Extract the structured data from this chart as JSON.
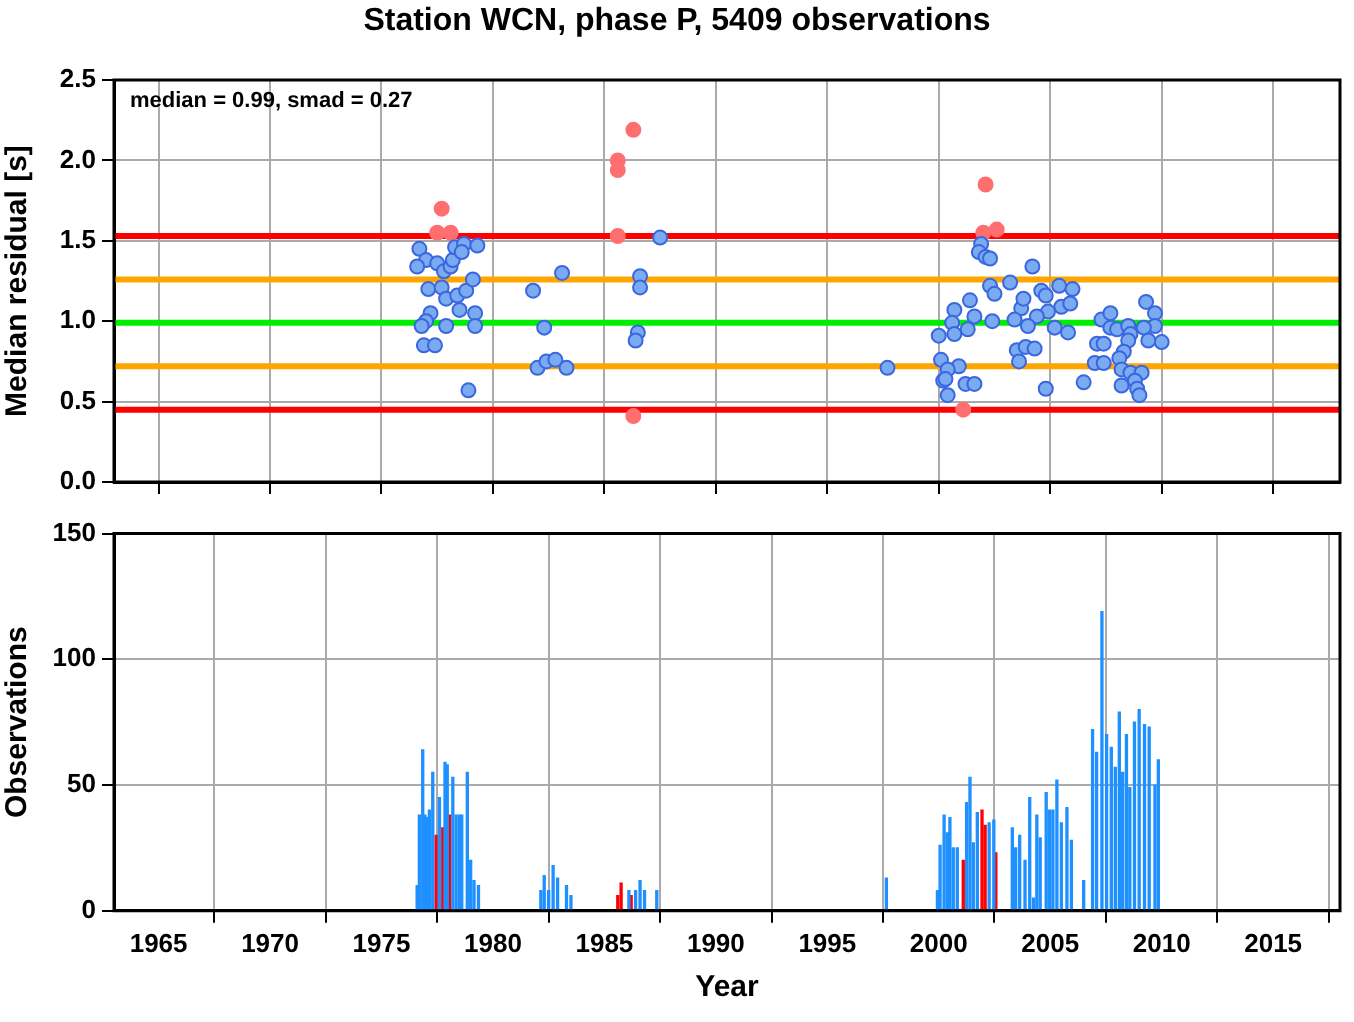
{
  "chart_data": [
    {
      "type": "scatter",
      "title": "Station WCN, phase P, 5409 observations",
      "ylabel": "Median residual [s]",
      "annotations": [
        "median = 0.99, smad = 0.27"
      ],
      "xlim": [
        1963,
        2018
      ],
      "xticks": [
        1965,
        1970,
        1975,
        1980,
        1985,
        1990,
        1995,
        2000,
        2005,
        2010,
        2015
      ],
      "ylim": [
        0,
        2.5
      ],
      "yticks": [
        {
          "value": 0,
          "label": "0.0"
        },
        {
          "value": 0.5,
          "label": "0.5"
        },
        {
          "value": 1,
          "label": "1.0"
        },
        {
          "value": 1.5,
          "label": "1.5"
        },
        {
          "value": 2,
          "label": "2.0"
        },
        {
          "value": 2.5,
          "label": "2.5"
        }
      ],
      "tick_labels": "y",
      "grid": true,
      "marker": "circle",
      "ref_lines": [
        {
          "axis": "y",
          "value": 1.53,
          "color": "#ff0000"
        },
        {
          "axis": "y",
          "value": 1.26,
          "color": "#ffa500"
        },
        {
          "axis": "y",
          "value": 0.99,
          "color": "#00ee00"
        },
        {
          "axis": "y",
          "value": 0.72,
          "color": "#ffa500"
        },
        {
          "axis": "y",
          "value": 0.45,
          "color": "#ff0000"
        }
      ],
      "series": [
        {
          "color": "#7aaaf0",
          "x": [
            1976.7,
            1977.0,
            1976.6,
            1977.5,
            1977.8,
            1978.1,
            1978.2,
            1978.3,
            1978.7,
            1979.3,
            1978.6,
            1977.1,
            1977.7,
            1977.9,
            1978.4,
            1978.8,
            1979.1,
            1978.5,
            1979.2,
            1977.2,
            1977.0,
            1976.8,
            1977.9,
            1979.2,
            1976.9,
            1977.4,
            1978.9,
            1981.8,
            1983.1,
            1982.3,
            1982.0,
            1982.4,
            1982.8,
            1983.3,
            1986.6,
            1986.6,
            1986.5,
            1986.4,
            1987.5,
            1997.7,
            2001.9,
            2001.8,
            2002.1,
            2002.3,
            2004.2,
            2002.3,
            2002.5,
            2003.2,
            2005.4,
            2006.0,
            2004.6,
            2004.8,
            2001.4,
            2000.7,
            2001.6,
            2003.7,
            2003.8,
            2005.5,
            2005.9,
            2000.6,
            2002.4,
            2003.4,
            2004.9,
            2004.4,
            2004.0,
            2005.2,
            2005.8,
            2001.3,
            2000.0,
            2000.7,
            2003.5,
            2003.9,
            2004.3,
            2003.6,
            2000.1,
            2000.9,
            2000.4,
            2000.2,
            2000.3,
            2001.2,
            2001.6,
            2000.4,
            2004.8,
            2006.5,
            2007.3,
            2007.7,
            2007.7,
            2008.0,
            2008.5,
            2008.6,
            2009.3,
            2009.7,
            2009.7,
            2009.2,
            2010.0,
            2009.4,
            2007.1,
            2007.4,
            2008.5,
            2008.3,
            2008.1,
            2007.0,
            2007.4,
            2008.2,
            2008.6,
            2009.1,
            2008.8,
            2008.9,
            2009.0,
            2008.2
          ],
          "values": [
            1.45,
            1.38,
            1.34,
            1.36,
            1.31,
            1.34,
            1.38,
            1.46,
            1.48,
            1.47,
            1.43,
            1.2,
            1.21,
            1.14,
            1.16,
            1.19,
            1.26,
            1.07,
            1.05,
            1.05,
            1.0,
            0.97,
            0.97,
            0.97,
            0.85,
            0.85,
            0.57,
            1.19,
            1.3,
            0.96,
            0.71,
            0.75,
            0.76,
            0.71,
            1.28,
            1.21,
            0.93,
            0.88,
            1.52,
            0.71,
            1.48,
            1.43,
            1.4,
            1.39,
            1.34,
            1.22,
            1.17,
            1.24,
            1.22,
            1.2,
            1.19,
            1.16,
            1.13,
            1.07,
            1.03,
            1.08,
            1.14,
            1.09,
            1.11,
            0.99,
            1.0,
            1.01,
            1.06,
            1.03,
            0.97,
            0.96,
            0.93,
            0.95,
            0.91,
            0.92,
            0.82,
            0.84,
            0.83,
            0.75,
            0.76,
            0.72,
            0.7,
            0.63,
            0.64,
            0.61,
            0.61,
            0.54,
            0.58,
            0.62,
            1.01,
            1.05,
            0.96,
            0.95,
            0.97,
            0.92,
            1.12,
            1.05,
            0.97,
            0.96,
            0.87,
            0.88,
            0.86,
            0.86,
            0.88,
            0.81,
            0.77,
            0.74,
            0.74,
            0.7,
            0.68,
            0.68,
            0.63,
            0.58,
            0.54,
            0.6
          ]
        },
        {
          "color": "#ff6f6f",
          "x": [
            1977.7,
            1977.5,
            1978.1,
            1985.6,
            1985.6,
            1985.6,
            1986.3,
            1986.3,
            2002.1,
            2002.0,
            2002.6,
            2001.1
          ],
          "values": [
            1.7,
            1.55,
            1.55,
            2.0,
            1.94,
            1.53,
            2.19,
            0.41,
            1.85,
            1.55,
            1.57,
            0.45
          ]
        }
      ]
    },
    {
      "type": "bar",
      "xlabel": "Year",
      "ylabel": "Observations",
      "xlim": [
        1963,
        2018
      ],
      "xticks": [
        1965,
        1970,
        1975,
        1980,
        1985,
        1990,
        1995,
        2000,
        2005,
        2010,
        2015
      ],
      "ylim": [
        0,
        150
      ],
      "yticks": [
        0,
        50,
        100,
        150
      ],
      "grid": true,
      "series": [
        {
          "color": "#1e90ff",
          "x": [
            1976.6,
            1976.7,
            1976.85,
            1976.95,
            1977.05,
            1977.15,
            1977.3,
            1977.6,
            1977.85,
            1977.95,
            1978.2,
            1978.35,
            1978.5,
            1978.6,
            1978.85,
            1979.0,
            1979.15,
            1979.35,
            1982.15,
            1982.3,
            1982.5,
            1982.7,
            1982.9,
            1983.3,
            1983.5,
            1986.1,
            1986.4,
            1986.6,
            1986.8,
            1987.35,
            1997.65,
            1999.94,
            2000.06,
            2000.24,
            2000.39,
            2000.5,
            2000.65,
            2000.83,
            2001.25,
            2001.4,
            2001.55,
            2001.73,
            2002.26,
            2002.47,
            2003.3,
            2003.45,
            2003.63,
            2003.87,
            2004.08,
            2004.25,
            2004.4,
            2004.55,
            2004.82,
            2004.97,
            2005.12,
            2005.3,
            2005.5,
            2005.75,
            2005.95,
            2006.5,
            2006.9,
            2007.08,
            2007.32,
            2007.53,
            2007.74,
            2007.92,
            2008.1,
            2008.25,
            2008.42,
            2008.57,
            2008.78,
            2008.99,
            2009.23,
            2009.44,
            2009.7,
            2009.85
          ],
          "values": [
            10,
            38,
            64,
            38,
            37,
            40,
            55,
            45,
            59,
            58,
            53,
            38,
            38,
            38,
            55,
            20,
            12,
            10,
            8,
            14,
            8,
            18,
            13,
            10,
            6,
            8,
            8,
            12,
            8,
            8,
            13,
            8,
            26,
            38,
            31,
            37,
            25,
            25,
            43,
            53,
            27,
            39,
            35,
            36,
            33,
            25,
            30,
            20,
            45,
            5,
            38,
            29,
            47,
            40,
            40,
            52,
            35,
            41,
            28,
            12,
            72,
            63,
            119,
            70,
            65,
            57,
            79,
            55,
            70,
            49,
            75,
            80,
            74,
            73,
            50,
            60
          ]
        },
        {
          "color": "#ff0000",
          "x": [
            1977.45,
            1977.75,
            1978.05,
            1985.6,
            1985.75,
            1986.2,
            2001.1,
            2001.94,
            2002.08,
            2002.56
          ],
          "values": [
            30,
            33,
            38,
            6,
            11,
            6,
            20,
            40,
            34,
            23
          ]
        }
      ]
    }
  ]
}
